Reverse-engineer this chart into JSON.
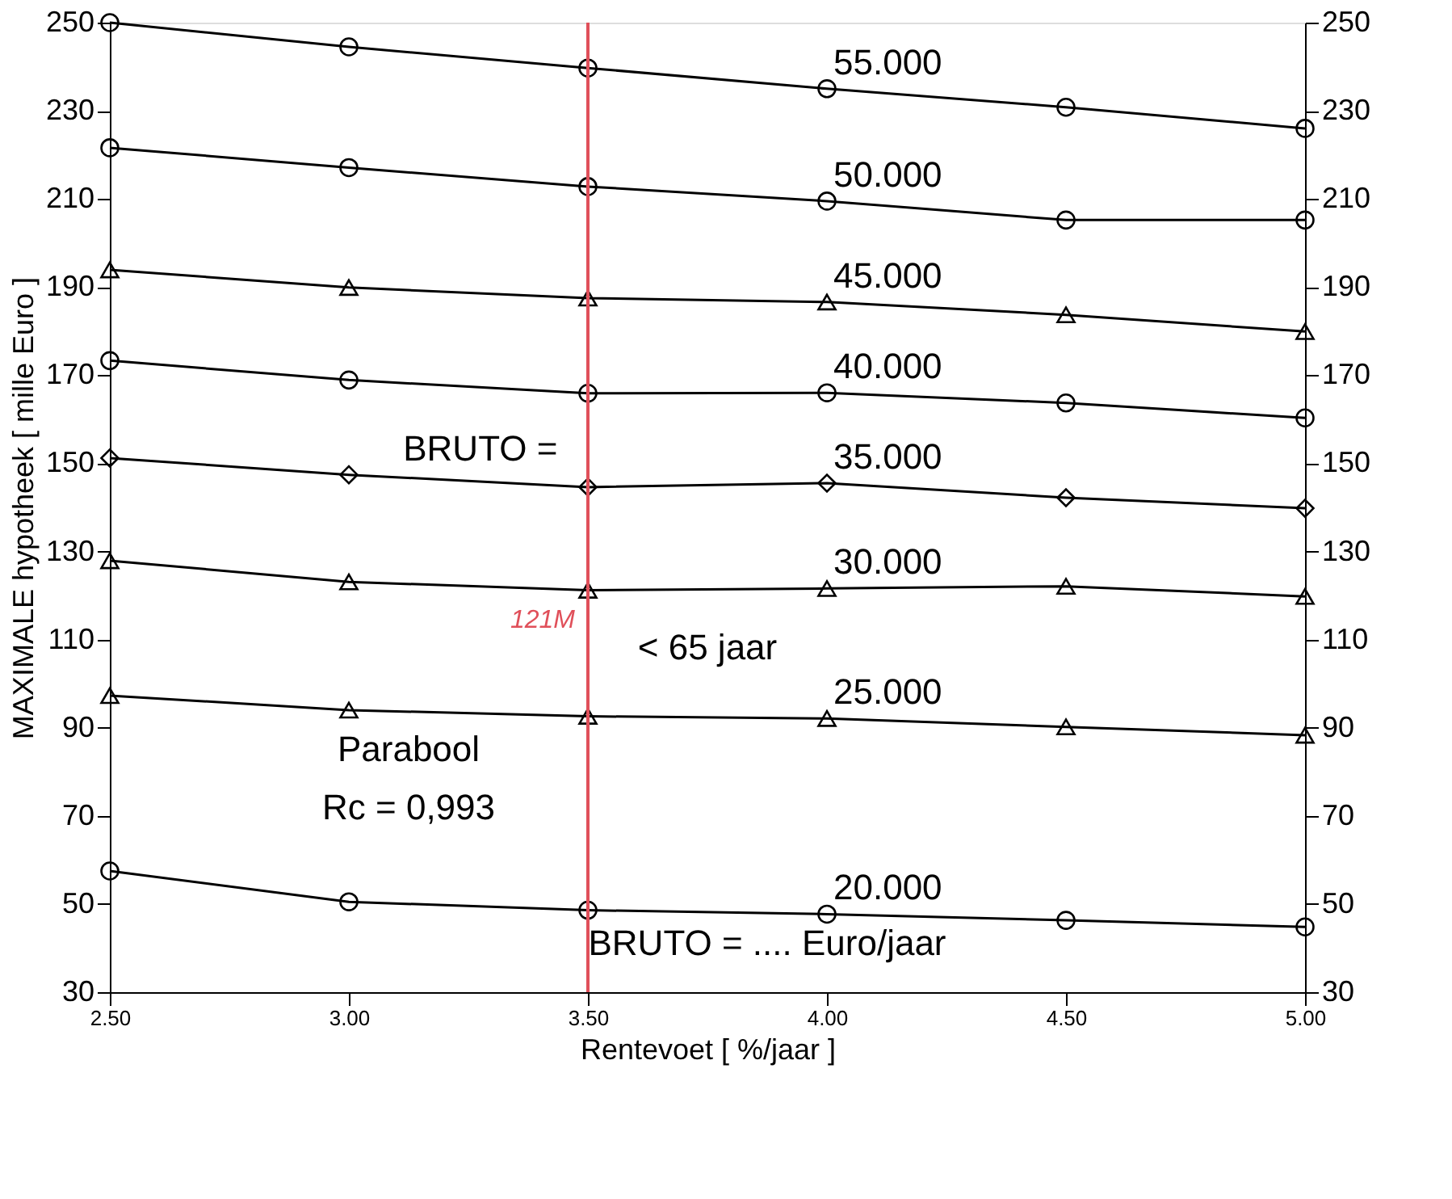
{
  "chart_data": {
    "type": "line",
    "xlabel": "Rentevoet [ %/jaar ]",
    "ylabel": "MAXIMALE hypotheek [ mille Euro ]",
    "x": [
      2.5,
      3.0,
      3.5,
      4.0,
      4.5,
      5.0
    ],
    "xlim": [
      2.5,
      5.0
    ],
    "xticks": [
      {
        "value": 2.5,
        "label": "2.50"
      },
      {
        "value": 3.0,
        "label": "3.00"
      },
      {
        "value": 3.5,
        "label": "3.50"
      },
      {
        "value": 4.0,
        "label": "4.00"
      },
      {
        "value": 4.5,
        "label": "4.50"
      },
      {
        "value": 5.0,
        "label": "5.00"
      }
    ],
    "ylim": [
      30,
      250
    ],
    "yticks": [
      30,
      50,
      70,
      90,
      110,
      130,
      150,
      170,
      190,
      210,
      230,
      250
    ],
    "y2lim": [
      30,
      250
    ],
    "y2ticks": [
      30,
      50,
      70,
      90,
      110,
      130,
      150,
      170,
      190,
      210,
      230,
      250
    ],
    "series": [
      {
        "name": "55.000",
        "color": "#000000",
        "marker": "circle",
        "values": [
          250,
          244.5,
          239.7,
          235.0,
          230.8,
          226.0
        ]
      },
      {
        "name": "50.000",
        "color": "#000000",
        "marker": "circle",
        "values": [
          221.6,
          217.1,
          212.8,
          209.5,
          205.2,
          205.2
        ]
      },
      {
        "name": "45.000",
        "color": "#000000",
        "marker": "triangle",
        "values": [
          193.9,
          189.9,
          187.5,
          186.6,
          183.7,
          179.9
        ]
      },
      {
        "name": "40.000",
        "color": "#000000",
        "marker": "circle",
        "values": [
          173.3,
          168.9,
          165.9,
          166.0,
          163.7,
          160.3
        ]
      },
      {
        "name": "35.000",
        "color": "#000000",
        "marker": "diamond",
        "values": [
          151.2,
          147.4,
          144.6,
          145.5,
          142.2,
          139.8
        ]
      },
      {
        "name": "30.000",
        "color": "#000000",
        "marker": "triangle",
        "values": [
          127.9,
          123.1,
          121.2,
          121.6,
          122.1,
          119.8
        ]
      },
      {
        "name": "25.000",
        "color": "#000000",
        "marker": "triangle",
        "values": [
          97.3,
          94.0,
          92.6,
          92.1,
          90.2,
          88.3
        ]
      },
      {
        "name": "20.000",
        "color": "#000000",
        "marker": "circle",
        "values": [
          57.5,
          50.5,
          48.6,
          47.7,
          46.3,
          44.8
        ]
      }
    ],
    "ref_lines": [
      {
        "axis": "x",
        "value": 3.5,
        "color": "#e0505a"
      }
    ],
    "annotations": [
      "BRUTO =",
      "< 65 jaar",
      "Parabool",
      "Rc = 0,993",
      "BRUTO = .... Euro/jaar",
      {
        "text": "121M",
        "x": 3.5,
        "y": 121.2
      }
    ],
    "grid": false
  }
}
